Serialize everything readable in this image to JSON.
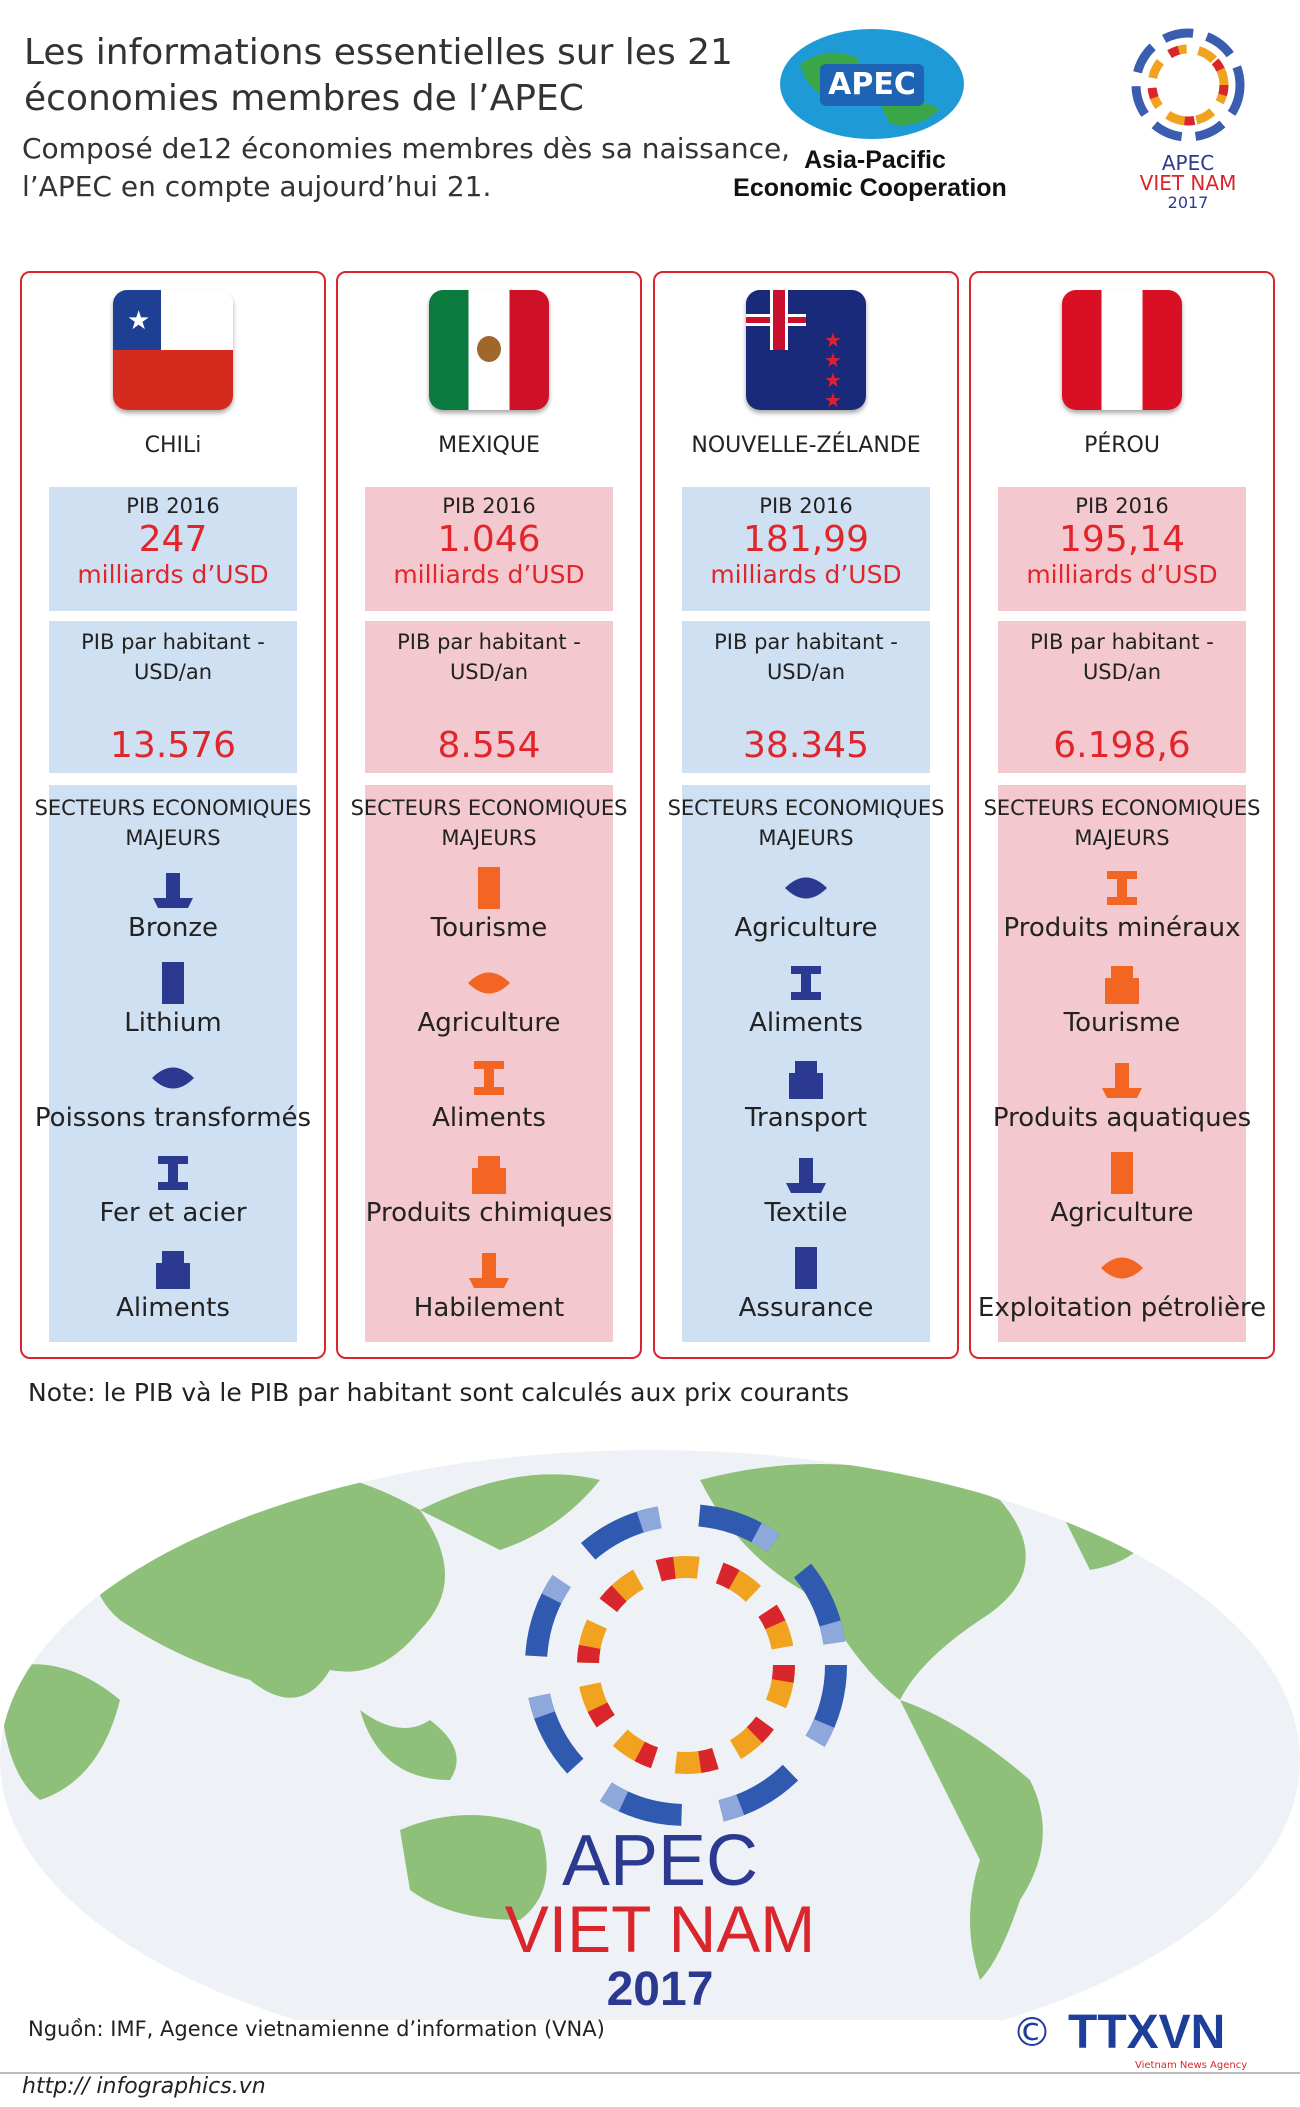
{
  "header": {
    "title_lines": [
      "Les informations essentielles sur les 21",
      "économies membres de l’APEC"
    ],
    "subtitle_lines": [
      "Composé de12 économies membres dès sa naissance,",
      "l’APEC en compte aujourd’hui 21."
    ]
  },
  "apec_logo": {
    "name": "APEC",
    "line1": "Asia-Pacific",
    "line2": "Economic Cooperation"
  },
  "vietnam_logo": {
    "line1": "APEC",
    "line2": "VIET NAM",
    "line3": "2017"
  },
  "countries": [
    {
      "name": "CHILi",
      "gdp_label": "PIB 2016",
      "gdp": "247",
      "gdp_unit": "milliards d’USD",
      "per_capita_label": [
        "PIB par habitant  -",
        "USD/an"
      ],
      "per_capita": "13.576",
      "sectors_heading": [
        "SECTEURS ECONOMIQUES",
        "MAJEURS"
      ],
      "sectors": [
        "Bronze",
        "Lithium",
        "Poissons transformés",
        "Fer et acier",
        "Aliments"
      ]
    },
    {
      "name": "MEXIQUE",
      "gdp_label": "PIB  2016",
      "gdp": "1.046",
      "gdp_unit": "milliards d’USD",
      "per_capita_label": [
        "PIB par habitant  -",
        "USD/an"
      ],
      "per_capita": "8.554",
      "sectors_heading": [
        "SECTEURS ECONOMIQUES",
        "MAJEURS"
      ],
      "sectors": [
        "Tourisme",
        "Agriculture",
        "Aliments",
        "Produits chimiques",
        "Habilement"
      ]
    },
    {
      "name": "NOUVELLE-ZÉLANDE",
      "gdp_label": "PIB 2016",
      "gdp": "181,99",
      "gdp_unit": "milliards d’USD",
      "per_capita_label": [
        "PIB par habitant  -",
        "USD/an"
      ],
      "per_capita": "38.345",
      "sectors_heading": [
        "SECTEURS ECONOMIQUES",
        "MAJEURS"
      ],
      "sectors": [
        "Agriculture",
        "Aliments",
        "Transport",
        "Textile",
        "Assurance"
      ]
    },
    {
      "name": "PÉROU",
      "gdp_label": "PIB  2016",
      "gdp": "195,14",
      "gdp_unit": "milliards d’USD",
      "per_capita_label": [
        "PIB par habitant  -",
        "USD/an"
      ],
      "per_capita": "6.198,6",
      "sectors_heading": [
        "SECTEURS ECONOMIQUES",
        "MAJEURS"
      ],
      "sectors": [
        "Produits minéraux",
        "Tourisme",
        "Produits aquatiques",
        "Agriculture",
        "Exploitation pétrolière"
      ]
    }
  ],
  "note": "Note: le PIB và le PIB par habitant sont calculés aux prix courants",
  "map_logo": {
    "line1": "APEC",
    "line2": "VIET NAM",
    "line3": "2017"
  },
  "footer": {
    "source": "Nguồn: IMF, Agence vietnamienne d’information (VNA)",
    "copyright": "©",
    "agency": "TTXVN",
    "agency_sub": "Vietnam News Agency",
    "url": "http:// infographics.vn"
  }
}
